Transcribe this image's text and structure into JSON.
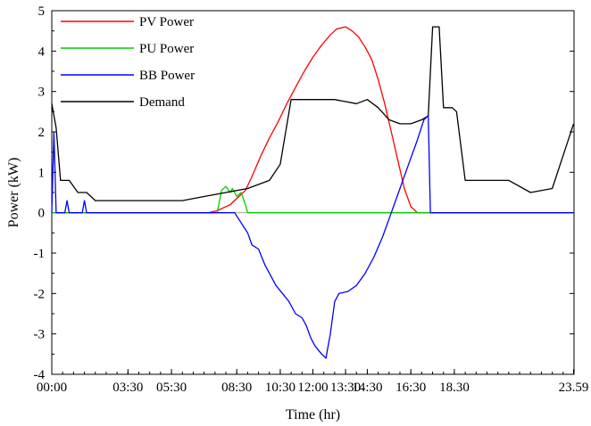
{
  "chart_data": {
    "type": "line",
    "title": "",
    "xlabel": "Time (hr)",
    "ylabel": "Power (kW)",
    "xlim": [
      0,
      24
    ],
    "ylim": [
      -4,
      5
    ],
    "xticks": [
      {
        "label": "00:00",
        "value": 0
      },
      {
        "label": "03:30",
        "value": 3.5
      },
      {
        "label": "05:30",
        "value": 5.5
      },
      {
        "label": "08:30",
        "value": 8.5
      },
      {
        "label": "10:30",
        "value": 10.5
      },
      {
        "label": "12:00",
        "value": 12
      },
      {
        "label": "13:30",
        "value": 13.5
      },
      {
        "label": "14:30",
        "value": 14.5
      },
      {
        "label": "16:30",
        "value": 16.5
      },
      {
        "label": "18.30",
        "value": 18.5
      },
      {
        "label": "23.59",
        "value": 23.98
      }
    ],
    "yticks": [
      -4,
      -3,
      -2,
      -1,
      0,
      1,
      2,
      3,
      4,
      5
    ],
    "legend_position": "top-left",
    "series": [
      {
        "name": "PV Power",
        "color": "#ff0000",
        "points": [
          [
            0,
            0
          ],
          [
            7.2,
            0
          ],
          [
            7.6,
            0.05
          ],
          [
            8.2,
            0.2
          ],
          [
            8.6,
            0.4
          ],
          [
            8.9,
            0.55
          ],
          [
            9.2,
            0.9
          ],
          [
            9.6,
            1.4
          ],
          [
            10.0,
            1.85
          ],
          [
            10.4,
            2.25
          ],
          [
            10.8,
            2.7
          ],
          [
            11.2,
            3.1
          ],
          [
            11.6,
            3.5
          ],
          [
            12.0,
            3.85
          ],
          [
            12.4,
            4.15
          ],
          [
            12.8,
            4.4
          ],
          [
            13.1,
            4.55
          ],
          [
            13.5,
            4.6
          ],
          [
            13.8,
            4.5
          ],
          [
            14.1,
            4.35
          ],
          [
            14.4,
            4.1
          ],
          [
            14.7,
            3.8
          ],
          [
            15.0,
            3.3
          ],
          [
            15.3,
            2.7
          ],
          [
            15.6,
            2.0
          ],
          [
            15.9,
            1.3
          ],
          [
            16.2,
            0.6
          ],
          [
            16.5,
            0.15
          ],
          [
            16.8,
            0.0
          ],
          [
            24,
            0
          ]
        ]
      },
      {
        "name": "PU Power",
        "color": "#00cc00",
        "points": [
          [
            0,
            0
          ],
          [
            7.6,
            0
          ],
          [
            7.8,
            0.55
          ],
          [
            8.0,
            0.65
          ],
          [
            8.2,
            0.5
          ],
          [
            8.3,
            0.6
          ],
          [
            8.5,
            0.4
          ],
          [
            8.7,
            0.5
          ],
          [
            8.9,
            0.2
          ],
          [
            9.0,
            0.0
          ],
          [
            24,
            0
          ]
        ]
      },
      {
        "name": "BB Power",
        "color": "#0000ff",
        "points": [
          [
            0,
            0
          ],
          [
            0.1,
            2.0
          ],
          [
            0.2,
            0
          ],
          [
            0.6,
            0
          ],
          [
            0.7,
            0.3
          ],
          [
            0.8,
            0
          ],
          [
            1.4,
            0
          ],
          [
            1.5,
            0.3
          ],
          [
            1.6,
            0
          ],
          [
            7.6,
            0
          ],
          [
            8.4,
            0
          ],
          [
            9.0,
            -0.5
          ],
          [
            9.2,
            -0.8
          ],
          [
            9.5,
            -0.9
          ],
          [
            9.8,
            -1.3
          ],
          [
            10.0,
            -1.5
          ],
          [
            10.3,
            -1.8
          ],
          [
            10.6,
            -2.0
          ],
          [
            10.9,
            -2.2
          ],
          [
            11.2,
            -2.5
          ],
          [
            11.5,
            -2.6
          ],
          [
            11.7,
            -2.8
          ],
          [
            11.9,
            -3.1
          ],
          [
            12.1,
            -3.3
          ],
          [
            12.4,
            -3.5
          ],
          [
            12.6,
            -3.6
          ],
          [
            12.8,
            -3.0
          ],
          [
            13.0,
            -2.2
          ],
          [
            13.2,
            -2.0
          ],
          [
            13.6,
            -1.95
          ],
          [
            14.0,
            -1.8
          ],
          [
            14.4,
            -1.5
          ],
          [
            14.8,
            -1.1
          ],
          [
            15.2,
            -0.6
          ],
          [
            15.6,
            0.0
          ],
          [
            16.0,
            0.6
          ],
          [
            16.4,
            1.2
          ],
          [
            16.8,
            1.8
          ],
          [
            17.1,
            2.3
          ],
          [
            17.3,
            2.4
          ],
          [
            17.4,
            0
          ],
          [
            24,
            0
          ]
        ]
      },
      {
        "name": "Demand",
        "color": "#000000",
        "points": [
          [
            0,
            2.7
          ],
          [
            0.2,
            2.1
          ],
          [
            0.4,
            0.8
          ],
          [
            0.8,
            0.8
          ],
          [
            1.2,
            0.5
          ],
          [
            1.6,
            0.5
          ],
          [
            2.0,
            0.3
          ],
          [
            3.0,
            0.3
          ],
          [
            4.0,
            0.3
          ],
          [
            5.0,
            0.3
          ],
          [
            6.0,
            0.3
          ],
          [
            7.0,
            0.4
          ],
          [
            8.0,
            0.5
          ],
          [
            9.0,
            0.6
          ],
          [
            10.0,
            0.8
          ],
          [
            10.5,
            1.2
          ],
          [
            11.0,
            2.8
          ],
          [
            11.5,
            2.8
          ],
          [
            12.0,
            2.8
          ],
          [
            12.5,
            2.8
          ],
          [
            13.0,
            2.8
          ],
          [
            13.5,
            2.75
          ],
          [
            14.0,
            2.7
          ],
          [
            14.5,
            2.8
          ],
          [
            15.0,
            2.6
          ],
          [
            15.5,
            2.3
          ],
          [
            16.0,
            2.2
          ],
          [
            16.5,
            2.2
          ],
          [
            17.0,
            2.3
          ],
          [
            17.3,
            2.4
          ],
          [
            17.5,
            4.6
          ],
          [
            17.8,
            4.6
          ],
          [
            18.0,
            2.6
          ],
          [
            18.4,
            2.6
          ],
          [
            18.6,
            2.5
          ],
          [
            19.0,
            0.8
          ],
          [
            20.0,
            0.8
          ],
          [
            21.0,
            0.8
          ],
          [
            22.0,
            0.5
          ],
          [
            23.0,
            0.6
          ],
          [
            23.98,
            2.2
          ]
        ]
      }
    ]
  }
}
